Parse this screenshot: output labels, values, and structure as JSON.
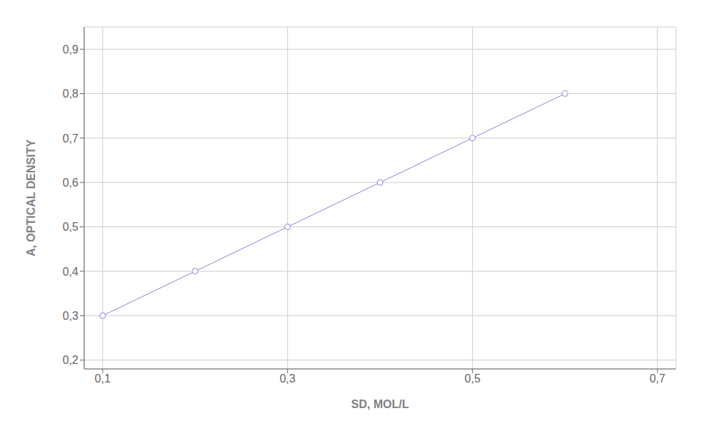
{
  "chart_data": {
    "type": "line",
    "x": [
      0.1,
      0.2,
      0.3,
      0.4,
      0.5,
      0.6
    ],
    "values": [
      0.3,
      0.4,
      0.5,
      0.6,
      0.7,
      0.8
    ],
    "xlabel": "SD, MOL/L",
    "ylabel": "A, OPTICAL DENSITY",
    "xlim": [
      0.08,
      0.72
    ],
    "ylim": [
      0.18,
      0.95
    ],
    "xticks": [
      {
        "value": 0.1,
        "label": "0,1"
      },
      {
        "value": 0.3,
        "label": "0,3"
      },
      {
        "value": 0.5,
        "label": "0,5"
      },
      {
        "value": 0.7,
        "label": "0,7"
      }
    ],
    "yticks": [
      {
        "value": 0.2,
        "label": "0,2"
      },
      {
        "value": 0.3,
        "label": "0,3"
      },
      {
        "value": 0.4,
        "label": "0,4"
      },
      {
        "value": 0.5,
        "label": "0,5"
      },
      {
        "value": 0.6,
        "label": "0,6"
      },
      {
        "value": 0.7,
        "label": "0,7"
      },
      {
        "value": 0.8,
        "label": "0,8"
      },
      {
        "value": 0.9,
        "label": "0,9"
      }
    ],
    "grid": true,
    "marker": "circle"
  }
}
